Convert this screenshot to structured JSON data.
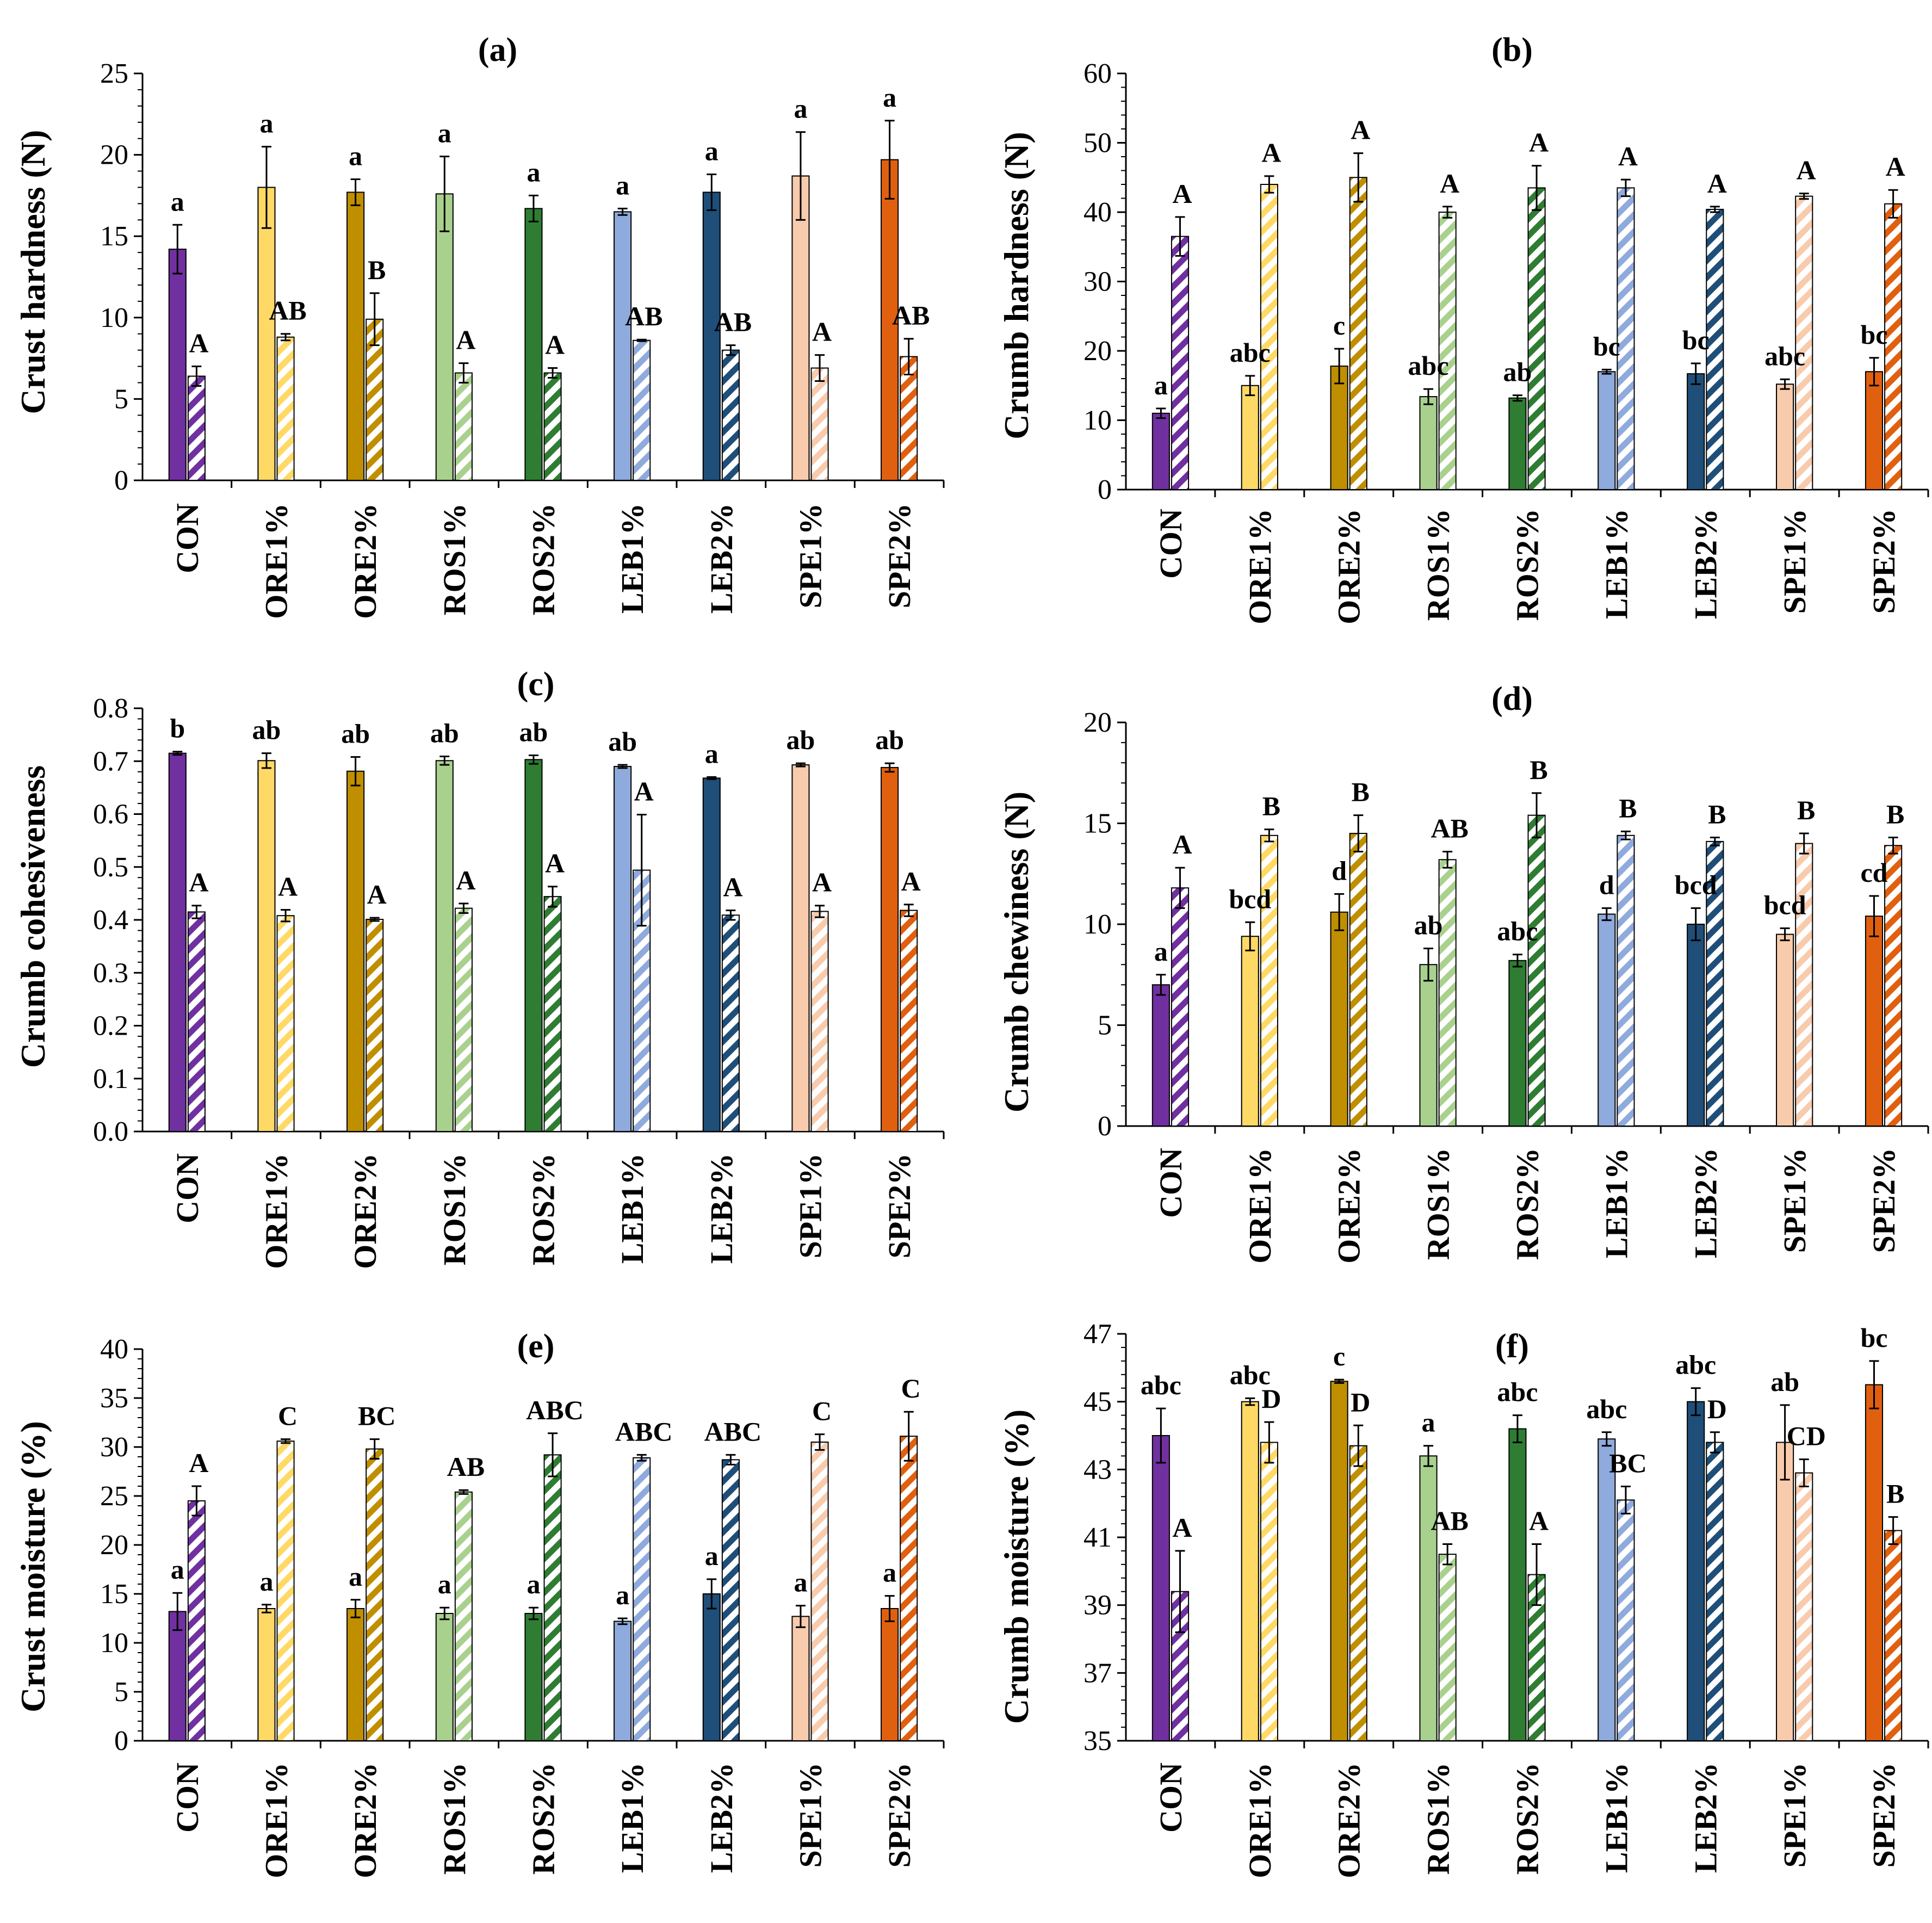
{
  "categories": [
    "CON",
    "ORE1%",
    "ORE2%",
    "ROS1%",
    "ROS2%",
    "LEB1%",
    "LEB2%",
    "SPE1%",
    "SPE2%"
  ],
  "colors": {
    "CON": "#7030a0",
    "ORE1%": "#ffd966",
    "ORE2%": "#bf8f00",
    "ROS1%": "#a9d18e",
    "ROS2%": "#2e7d32",
    "LEB1%": "#8faadc",
    "LEB2%": "#1f4e79",
    "SPE1%": "#f8cbad",
    "SPE2%": "#e06010"
  },
  "chart_data": [
    {
      "panel": "(a)",
      "type": "bar",
      "ylabel": "Crust hardness (N)",
      "ylim": [
        0,
        25
      ],
      "ystep": 5,
      "ydecimals": 0,
      "series": [
        {
          "name": "solid",
          "values": [
            14.2,
            18.0,
            17.7,
            17.6,
            16.7,
            16.5,
            17.7,
            18.7,
            19.7
          ],
          "errors": [
            1.5,
            2.5,
            0.8,
            2.3,
            0.8,
            0.2,
            1.1,
            2.7,
            2.4
          ],
          "labels": [
            "a",
            "a",
            "a",
            "a",
            "a",
            "a",
            "a",
            "a",
            "a"
          ]
        },
        {
          "name": "hatched",
          "values": [
            6.4,
            8.8,
            9.9,
            6.6,
            6.6,
            8.6,
            8.0,
            6.9,
            7.6
          ],
          "errors": [
            0.6,
            0.2,
            1.6,
            0.6,
            0.3,
            0.05,
            0.3,
            0.8,
            1.1
          ],
          "labels": [
            "A",
            "AB",
            "B",
            "A",
            "A",
            "AB",
            "AB",
            "A",
            "AB"
          ]
        }
      ]
    },
    {
      "panel": "(b)",
      "type": "bar",
      "ylabel": "Crumb hardness (N)",
      "ylim": [
        0,
        60
      ],
      "ystep": 10,
      "ydecimals": 0,
      "series": [
        {
          "name": "solid",
          "values": [
            11.0,
            15.0,
            17.8,
            13.4,
            13.2,
            17.0,
            16.7,
            15.2,
            17.0
          ],
          "errors": [
            0.7,
            1.4,
            2.5,
            1.1,
            0.4,
            0.3,
            1.5,
            0.7,
            2.0
          ],
          "labels": [
            "a",
            "abc",
            "c",
            "abc",
            "ab",
            "bc",
            "bc",
            "abc",
            "bc"
          ]
        },
        {
          "name": "hatched",
          "values": [
            36.5,
            44.0,
            45.0,
            40.0,
            43.5,
            43.5,
            40.4,
            42.3,
            41.2
          ],
          "errors": [
            2.8,
            1.2,
            3.5,
            0.8,
            3.2,
            1.2,
            0.4,
            0.4,
            2.0
          ],
          "labels": [
            "A",
            "A",
            "A",
            "A",
            "A",
            "A",
            "A",
            "A",
            "A"
          ]
        }
      ]
    },
    {
      "panel": "(c)",
      "type": "bar",
      "ylabel": "Crumb cohesiveness",
      "ylim": [
        0,
        0.8
      ],
      "ystep": 0.1,
      "ydecimals": 1,
      "series": [
        {
          "name": "solid",
          "values": [
            0.715,
            0.701,
            0.681,
            0.701,
            0.703,
            0.69,
            0.668,
            0.693,
            0.688
          ],
          "errors": [
            0.003,
            0.014,
            0.027,
            0.008,
            0.008,
            0.003,
            0.002,
            0.003,
            0.008
          ],
          "labels": [
            "b",
            "ab",
            "ab",
            "ab",
            "ab",
            "ab",
            "a",
            "ab",
            "ab"
          ]
        },
        {
          "name": "hatched",
          "values": [
            0.415,
            0.408,
            0.401,
            0.422,
            0.444,
            0.494,
            0.409,
            0.416,
            0.418
          ],
          "errors": [
            0.012,
            0.011,
            0.003,
            0.009,
            0.019,
            0.105,
            0.009,
            0.011,
            0.011
          ],
          "labels": [
            "A",
            "A",
            "A",
            "A",
            "A",
            "A",
            "A",
            "A",
            "A"
          ]
        }
      ]
    },
    {
      "panel": "(d)",
      "type": "bar",
      "ylabel": "Crumb chewiness (N)",
      "ylim": [
        0,
        20
      ],
      "ystep": 5,
      "ydecimals": 0,
      "series": [
        {
          "name": "solid",
          "values": [
            7.0,
            9.4,
            10.6,
            8.0,
            8.2,
            10.5,
            10.0,
            9.5,
            10.4
          ],
          "errors": [
            0.5,
            0.7,
            0.9,
            0.8,
            0.3,
            0.3,
            0.8,
            0.3,
            1.0
          ],
          "labels": [
            "a",
            "bcd",
            "d",
            "ab",
            "abc",
            "d",
            "bcd",
            "bcd",
            "cd"
          ]
        },
        {
          "name": "hatched",
          "values": [
            11.8,
            14.4,
            14.5,
            13.2,
            15.4,
            14.4,
            14.1,
            14.0,
            13.9
          ],
          "errors": [
            1.0,
            0.3,
            0.9,
            0.4,
            1.1,
            0.2,
            0.2,
            0.5,
            0.4
          ],
          "labels": [
            "A",
            "B",
            "B",
            "AB",
            "B",
            "B",
            "B",
            "B",
            "B"
          ]
        }
      ]
    },
    {
      "panel": "(e)",
      "type": "bar",
      "ylabel": "Crust moisture (%)",
      "ylim": [
        0,
        40
      ],
      "ystep": 5,
      "ydecimals": 0,
      "series": [
        {
          "name": "solid",
          "values": [
            13.2,
            13.5,
            13.5,
            13.0,
            13.0,
            12.2,
            15.0,
            12.7,
            13.5
          ],
          "errors": [
            1.9,
            0.4,
            0.9,
            0.6,
            0.6,
            0.3,
            1.5,
            1.1,
            1.3
          ],
          "labels": [
            "a",
            "a",
            "a",
            "a",
            "a",
            "a",
            "a",
            "a",
            "a"
          ]
        },
        {
          "name": "hatched",
          "values": [
            24.5,
            30.6,
            29.8,
            25.4,
            29.2,
            28.9,
            28.7,
            30.5,
            31.1
          ],
          "errors": [
            1.5,
            0.2,
            1.0,
            0.2,
            2.2,
            0.3,
            0.5,
            0.8,
            2.5
          ],
          "labels": [
            "A",
            "C",
            "BC",
            "AB",
            "ABC",
            "ABC",
            "ABC",
            "C",
            "C"
          ]
        }
      ]
    },
    {
      "panel": "(f)",
      "type": "bar",
      "ylabel": "Crumb moisture (%)",
      "ylim": [
        35,
        47
      ],
      "ystep": 2,
      "ydecimals": 0,
      "series": [
        {
          "name": "solid",
          "values": [
            44.0,
            45.0,
            45.6,
            43.4,
            44.2,
            43.9,
            45.0,
            43.8,
            45.5
          ],
          "errors": [
            0.8,
            0.1,
            0.05,
            0.3,
            0.4,
            0.2,
            0.4,
            1.1,
            0.7
          ],
          "labels": [
            "abc",
            "abc",
            "c",
            "a",
            "abc",
            "abc",
            "abc",
            "ab",
            "bc"
          ]
        },
        {
          "name": "hatched",
          "values": [
            39.4,
            43.8,
            43.7,
            40.5,
            39.9,
            42.1,
            43.8,
            42.9,
            41.2
          ],
          "errors": [
            1.2,
            0.6,
            0.6,
            0.3,
            0.9,
            0.4,
            0.3,
            0.4,
            0.4
          ],
          "labels": [
            "A",
            "D",
            "D",
            "AB",
            "A",
            "BC",
            "D",
            "CD",
            "B"
          ]
        }
      ]
    }
  ]
}
